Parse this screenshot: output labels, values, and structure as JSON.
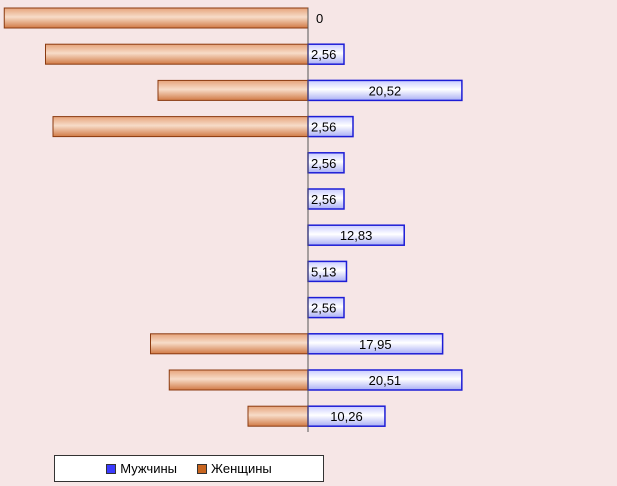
{
  "chart_data": {
    "type": "bar",
    "orientation": "horizontal",
    "title": "",
    "xlabel": "",
    "ylabel": "",
    "grid": false,
    "legend_position": "bottom-left",
    "series": [
      {
        "name": "Мужчины",
        "color": "#2e2eff",
        "values": [
          0,
          2.56,
          20.52,
          2.56,
          2.56,
          2.56,
          12.83,
          5.13,
          2.56,
          17.95,
          20.51,
          10.26
        ],
        "labels": [
          "0",
          "2,56",
          "20,52",
          "2,56",
          "2,56",
          "2,56",
          "12,83",
          "5,13",
          "2,56",
          "17,95",
          "20,51",
          "10,26"
        ]
      },
      {
        "name": "Женщины",
        "color": "#c8651f",
        "values": [
          -40.5,
          -35,
          -20,
          -34,
          0,
          0,
          0,
          0,
          0,
          -21,
          -18.5,
          -8
        ]
      }
    ]
  },
  "legend": {
    "men": "Мужчины",
    "women": "Женщины"
  }
}
